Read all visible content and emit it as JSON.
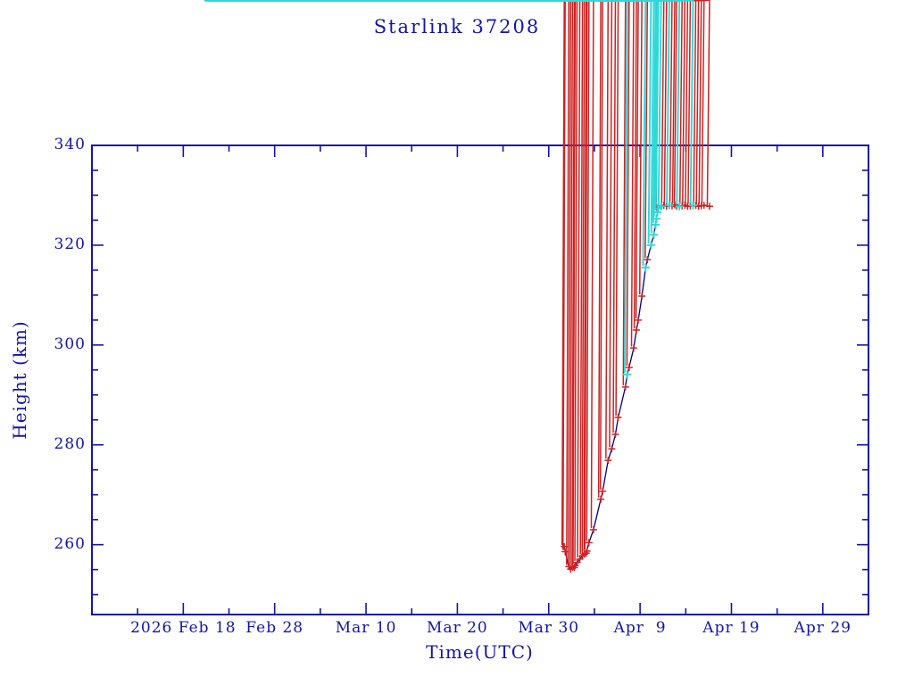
{
  "chart_data": {
    "type": "scatter",
    "title": "Starlink 37208",
    "xlabel": "Time(UTC)",
    "ylabel": "Height (km)",
    "x_axis": {
      "unit": "days since 2026 Feb 8 (UTC)",
      "range": [
        0,
        85
      ],
      "major_ticks": [
        {
          "day": 10,
          "label": "2026 Feb 18"
        },
        {
          "day": 20,
          "label": "Feb 28"
        },
        {
          "day": 30,
          "label": "Mar 10"
        },
        {
          "day": 40,
          "label": "Mar 20"
        },
        {
          "day": 50,
          "label": "Mar 30"
        },
        {
          "day": 60,
          "label": "Apr  9"
        },
        {
          "day": 70,
          "label": "Apr 19"
        },
        {
          "day": 80,
          "label": "Apr 29"
        }
      ],
      "minor_tick_step": 5
    },
    "y_axis": {
      "unit": "km",
      "range": [
        246,
        340
      ],
      "major_ticks": [
        260,
        280,
        300,
        320,
        340
      ],
      "minor_tick_step": 5
    },
    "grid": false,
    "legend": "none",
    "colors": {
      "text": "#1414AA",
      "frame": "#1414AA",
      "track_line": "#000080",
      "observed_marker": "#CC2222",
      "predicted_marker": "#2FD8D8"
    },
    "series": [
      {
        "name": "orbit-track-line",
        "type": "line",
        "color_key": "track_line",
        "points": [
          [
            51.7,
            259.6
          ],
          [
            51.8,
            258.6
          ],
          [
            52.2,
            255.6
          ],
          [
            52.4,
            255.1
          ],
          [
            52.6,
            255.5
          ],
          [
            52.9,
            255.7
          ],
          [
            53.1,
            256.4
          ],
          [
            53.4,
            257.1
          ],
          [
            53.7,
            257.8
          ],
          [
            54.1,
            258.3
          ],
          [
            54.4,
            260.4
          ],
          [
            54.9,
            263.0
          ],
          [
            55.7,
            269.1
          ],
          [
            55.9,
            270.7
          ],
          [
            56.5,
            276.9
          ],
          [
            56.9,
            279.2
          ],
          [
            57.3,
            282.1
          ],
          [
            57.6,
            285.5
          ],
          [
            58.4,
            291.6
          ],
          [
            58.6,
            294.1
          ],
          [
            58.8,
            295.5
          ],
          [
            59.3,
            299.4
          ],
          [
            59.6,
            303.0
          ],
          [
            59.8,
            305.0
          ],
          [
            60.2,
            309.8
          ],
          [
            60.6,
            315.5
          ],
          [
            60.8,
            317.1
          ],
          [
            61.2,
            320.0
          ],
          [
            61.5,
            322.1
          ],
          [
            61.7,
            324.1
          ],
          [
            61.9,
            326.6
          ],
          [
            62.0,
            327.7
          ],
          [
            62.6,
            327.9
          ],
          [
            63.2,
            328.0
          ],
          [
            63.8,
            327.9
          ],
          [
            64.3,
            327.9
          ],
          [
            64.9,
            327.9
          ],
          [
            65.5,
            327.9
          ],
          [
            66.1,
            327.9
          ],
          [
            66.7,
            327.9
          ],
          [
            67.0,
            328.0
          ],
          [
            67.6,
            327.8
          ]
        ]
      },
      {
        "name": "observed-heights",
        "type": "scatter",
        "marker": "asterisk",
        "color_key": "observed_marker",
        "points": [
          [
            51.7,
            259.6
          ],
          [
            51.8,
            258.6
          ],
          [
            52.2,
            255.6
          ],
          [
            52.4,
            255.1
          ],
          [
            52.6,
            255.5
          ],
          [
            52.8,
            255.4
          ],
          [
            52.9,
            255.8
          ],
          [
            53.1,
            256.4
          ],
          [
            53.4,
            257.1
          ],
          [
            53.7,
            257.8
          ],
          [
            53.9,
            258.1
          ],
          [
            54.1,
            258.3
          ],
          [
            54.2,
            258.7
          ],
          [
            54.4,
            260.4
          ],
          [
            54.9,
            263.0
          ],
          [
            55.7,
            269.1
          ],
          [
            55.9,
            270.7
          ],
          [
            56.5,
            276.9
          ],
          [
            56.9,
            279.2
          ],
          [
            57.3,
            282.1
          ],
          [
            57.6,
            285.5
          ],
          [
            58.4,
            291.6
          ],
          [
            58.8,
            295.5
          ],
          [
            59.3,
            299.4
          ],
          [
            59.6,
            303.0
          ],
          [
            59.8,
            305.0
          ],
          [
            60.2,
            309.8
          ],
          [
            60.8,
            317.1
          ],
          [
            61.8,
            327.6
          ],
          [
            62.0,
            327.9
          ],
          [
            62.6,
            328.0
          ],
          [
            62.9,
            327.8
          ],
          [
            63.5,
            327.9
          ],
          [
            63.8,
            328.1
          ],
          [
            64.0,
            327.8
          ],
          [
            64.6,
            327.9
          ],
          [
            64.9,
            328.0
          ],
          [
            65.2,
            327.8
          ],
          [
            65.5,
            327.9
          ],
          [
            66.1,
            328.0
          ],
          [
            66.4,
            327.8
          ],
          [
            66.7,
            327.9
          ],
          [
            67.0,
            328.0
          ],
          [
            67.6,
            327.8
          ]
        ]
      },
      {
        "name": "predicted-heights",
        "type": "scatter",
        "marker": "asterisk",
        "color_key": "predicted_marker",
        "points": [
          [
            58.6,
            294.1
          ],
          [
            60.6,
            315.5
          ],
          [
            61.2,
            320.0
          ],
          [
            61.5,
            322.1
          ],
          [
            61.7,
            324.1
          ],
          [
            61.8,
            325.3
          ],
          [
            61.9,
            326.6
          ],
          [
            62.0,
            327.4
          ],
          [
            62.3,
            327.8
          ],
          [
            63.2,
            328.0
          ],
          [
            64.3,
            327.8
          ],
          [
            65.8,
            328.0
          ]
        ]
      }
    ]
  }
}
